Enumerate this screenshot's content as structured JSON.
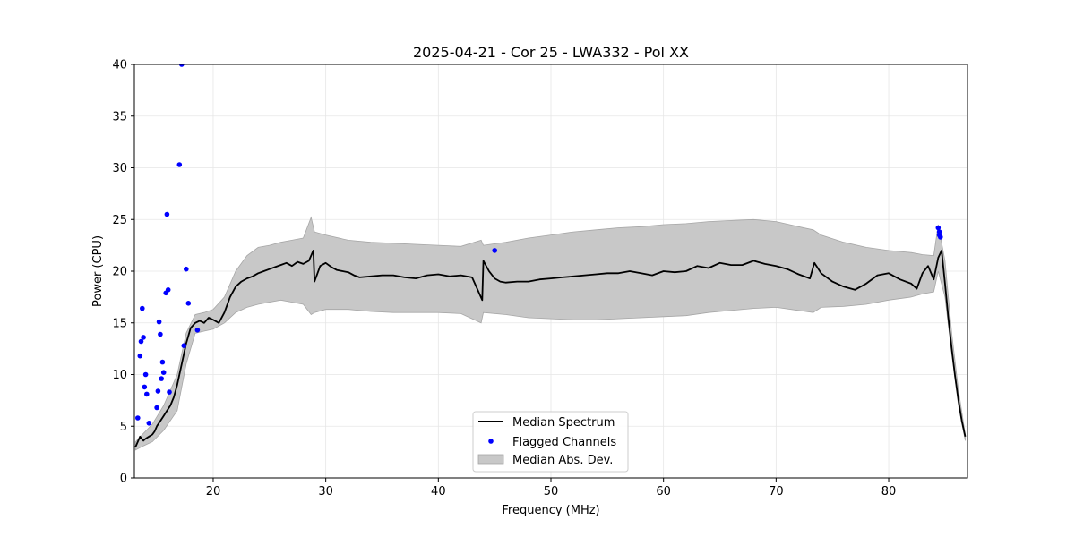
{
  "chart_data": {
    "type": "line",
    "title": "2025-04-21 - Cor 25 - LWA332 - Pol XX",
    "xlabel": "Frequency (MHz)",
    "ylabel": "Power (CPU)",
    "xlim": [
      13.0,
      87.0
    ],
    "ylim": [
      0,
      40
    ],
    "xticks": [
      20,
      30,
      40,
      50,
      60,
      70,
      80
    ],
    "yticks": [
      0,
      5,
      10,
      15,
      20,
      25,
      30,
      35,
      40
    ],
    "grid": true,
    "legend": {
      "position": "lower-center",
      "entries": [
        {
          "label": "Median Spectrum",
          "kind": "line",
          "color": "#000000"
        },
        {
          "label": "Flagged Channels",
          "kind": "marker",
          "color": "#0000ff"
        },
        {
          "label": "Median Abs. Dev.",
          "kind": "band",
          "color": "#c8c8c8"
        }
      ]
    },
    "series": [
      {
        "name": "Median Spectrum",
        "x": [
          13.1,
          13.3,
          13.5,
          13.8,
          14.0,
          14.3,
          14.6,
          14.8,
          15.0,
          15.3,
          15.6,
          15.9,
          16.2,
          16.5,
          16.8,
          17.2,
          17.6,
          18.0,
          18.4,
          18.8,
          19.2,
          19.6,
          20.0,
          20.5,
          21.0,
          21.5,
          22.0,
          22.5,
          23.0,
          23.5,
          24.0,
          24.5,
          25.0,
          25.5,
          26.0,
          26.5,
          27.0,
          27.5,
          28.0,
          28.5,
          28.9,
          29.0,
          29.5,
          30.0,
          30.5,
          31.0,
          31.5,
          32.0,
          32.5,
          33.0,
          34.0,
          35.0,
          36.0,
          37.0,
          38.0,
          39.0,
          40.0,
          41.0,
          42.0,
          43.0,
          43.9,
          44.0,
          44.5,
          45.0,
          45.5,
          46.0,
          47.0,
          48.0,
          49.0,
          50.0,
          51.0,
          52.0,
          53.0,
          54.0,
          55.0,
          56.0,
          57.0,
          58.0,
          59.0,
          60.0,
          61.0,
          62.0,
          63.0,
          64.0,
          65.0,
          66.0,
          67.0,
          68.0,
          69.0,
          70.0,
          71.0,
          72.0,
          73.0,
          73.4,
          74.0,
          75.0,
          76.0,
          77.0,
          78.0,
          79.0,
          80.0,
          81.0,
          82.0,
          82.5,
          83.0,
          83.5,
          84.0,
          84.4,
          84.7,
          85.0,
          85.3,
          85.6,
          85.9,
          86.2,
          86.5,
          86.8
        ],
        "values": [
          3.0,
          3.5,
          4.0,
          3.6,
          3.8,
          4.0,
          4.2,
          4.5,
          5.0,
          5.5,
          6.0,
          6.5,
          7.0,
          7.8,
          9.0,
          11.0,
          13.0,
          14.5,
          15.0,
          15.2,
          15.0,
          15.5,
          15.3,
          15.0,
          16.0,
          17.5,
          18.5,
          19.0,
          19.3,
          19.5,
          19.8,
          20.0,
          20.2,
          20.4,
          20.6,
          20.8,
          20.5,
          20.9,
          20.7,
          21.0,
          22.0,
          19.0,
          20.5,
          20.8,
          20.4,
          20.1,
          20.0,
          19.9,
          19.6,
          19.4,
          19.5,
          19.6,
          19.6,
          19.4,
          19.3,
          19.6,
          19.7,
          19.5,
          19.6,
          19.4,
          17.2,
          21.0,
          20.0,
          19.3,
          19.0,
          18.9,
          19.0,
          19.0,
          19.2,
          19.3,
          19.4,
          19.5,
          19.6,
          19.7,
          19.8,
          19.8,
          20.0,
          19.8,
          19.6,
          20.0,
          19.9,
          20.0,
          20.5,
          20.3,
          20.8,
          20.6,
          20.6,
          21.0,
          20.7,
          20.5,
          20.2,
          19.7,
          19.3,
          20.8,
          19.8,
          19.0,
          18.5,
          18.2,
          18.8,
          19.6,
          19.8,
          19.2,
          18.8,
          18.3,
          19.8,
          20.5,
          19.2,
          21.3,
          22.0,
          18.8,
          15.5,
          12.5,
          9.8,
          7.5,
          5.5,
          4.0
        ],
        "color": "#000000"
      },
      {
        "name": "Median Abs. Dev.",
        "x": [
          13.1,
          13.8,
          14.6,
          15.6,
          16.8,
          17.6,
          18.4,
          19.2,
          20.0,
          21.0,
          22.0,
          23.0,
          24.0,
          25.0,
          26.0,
          27.0,
          28.0,
          28.7,
          29.0,
          30.0,
          32.0,
          34.0,
          36.0,
          38.0,
          40.0,
          42.0,
          43.8,
          44.0,
          46.0,
          48.0,
          50.0,
          52.0,
          54.0,
          56.0,
          58.0,
          60.0,
          62.0,
          64.0,
          66.0,
          68.0,
          70.0,
          72.0,
          73.3,
          74.0,
          76.0,
          78.0,
          80.0,
          82.0,
          83.0,
          84.0,
          84.4,
          85.0,
          85.6,
          86.2,
          86.8
        ],
        "upper": [
          3.5,
          4.3,
          5.2,
          7.0,
          10.0,
          14.0,
          15.8,
          16.0,
          16.3,
          17.5,
          20.0,
          21.5,
          22.3,
          22.5,
          22.8,
          23.0,
          23.2,
          25.2,
          23.8,
          23.5,
          23.0,
          22.8,
          22.7,
          22.6,
          22.5,
          22.4,
          23.0,
          22.5,
          22.8,
          23.2,
          23.5,
          23.8,
          24.0,
          24.2,
          24.3,
          24.5,
          24.6,
          24.8,
          24.9,
          25.0,
          24.8,
          24.3,
          24.0,
          23.5,
          22.8,
          22.3,
          22.0,
          21.8,
          21.6,
          21.5,
          24.5,
          21.0,
          14.0,
          8.5,
          4.2
        ],
        "lower": [
          2.7,
          3.1,
          3.5,
          4.6,
          6.5,
          11.0,
          14.0,
          14.2,
          14.4,
          15.0,
          16.0,
          16.5,
          16.8,
          17.0,
          17.2,
          17.0,
          16.8,
          15.8,
          16.0,
          16.3,
          16.3,
          16.1,
          16.0,
          16.0,
          16.0,
          15.9,
          15.0,
          16.0,
          15.8,
          15.5,
          15.4,
          15.3,
          15.3,
          15.4,
          15.5,
          15.6,
          15.7,
          16.0,
          16.2,
          16.4,
          16.5,
          16.2,
          16.0,
          16.5,
          16.6,
          16.8,
          17.2,
          17.5,
          17.8,
          18.0,
          20.0,
          17.5,
          12.0,
          7.0,
          3.6
        ],
        "color": "#c8c8c8"
      },
      {
        "name": "Flagged Channels",
        "type": "scatter",
        "x": [
          13.3,
          13.5,
          13.6,
          13.7,
          13.8,
          13.9,
          14.0,
          14.1,
          14.3,
          15.0,
          15.1,
          15.2,
          15.3,
          15.4,
          15.5,
          15.6,
          15.8,
          15.9,
          16.0,
          16.1,
          17.0,
          17.2,
          17.4,
          17.6,
          17.8,
          18.6,
          45.0,
          84.4,
          84.5,
          84.5,
          84.6
        ],
        "values": [
          5.8,
          11.8,
          13.2,
          16.4,
          13.6,
          8.8,
          10.0,
          8.1,
          5.3,
          6.8,
          8.4,
          15.1,
          13.9,
          9.6,
          11.2,
          10.2,
          17.9,
          25.5,
          18.2,
          8.3,
          30.3,
          40.0,
          12.8,
          20.2,
          16.9,
          14.3,
          22.0,
          24.2,
          23.8,
          23.5,
          23.3
        ],
        "color": "#0000ff"
      }
    ]
  }
}
